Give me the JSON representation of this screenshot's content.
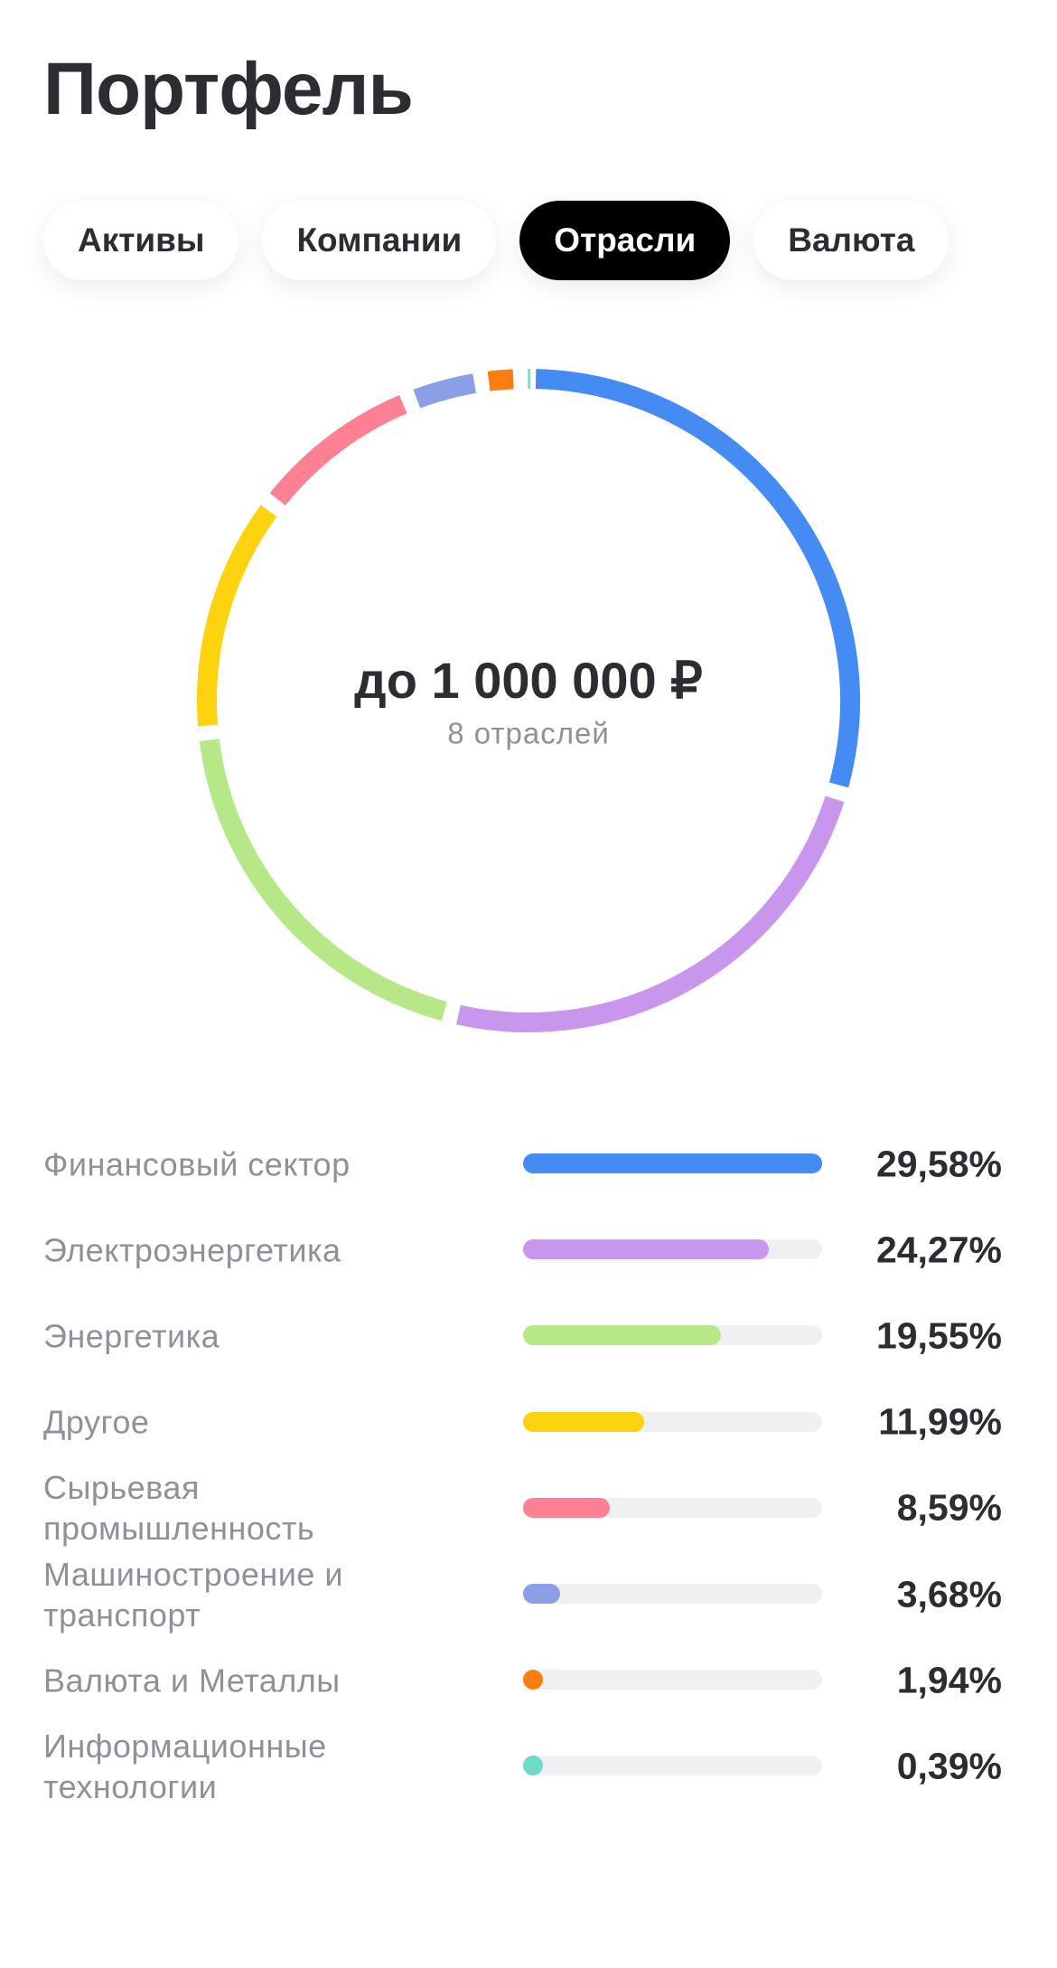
{
  "header": {
    "title": "Портфель"
  },
  "tabs": {
    "items": [
      "Активы",
      "Компании",
      "Отрасли",
      "Валюта"
    ],
    "active": 2
  },
  "chart_data": {
    "type": "donut",
    "center_title": "до 1 000 000 ₽",
    "center_subtitle": "8 отраслей",
    "categories": [
      "Финансовый сектор",
      "Электроэнергетика",
      "Энергетика",
      "Другое",
      "Сырьевая промышленность",
      "Машиностроение и транспорт",
      "Валюта и Металлы",
      "Информационные технологии"
    ],
    "values": [
      29.58,
      24.27,
      19.55,
      11.99,
      8.59,
      3.68,
      1.94,
      0.39
    ],
    "value_labels": [
      "29,58%",
      "24,27%",
      "19,55%",
      "11,99%",
      "8,59%",
      "3,68%",
      "1,94%",
      "0,39%"
    ],
    "colors": [
      "#448cf3",
      "#c996ee",
      "#b7e887",
      "#fdd30f",
      "#fd8093",
      "#8a9fe6",
      "#fc7e13",
      "#6edbc5"
    ]
  }
}
